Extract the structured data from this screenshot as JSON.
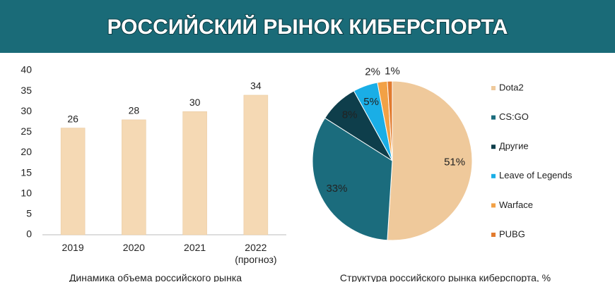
{
  "title": "РОССИЙСКИЙ РЫНОК КИБЕРСПОРТА",
  "chart_data": [
    {
      "type": "bar",
      "caption": "Динамика объема российского рынка",
      "categories": [
        "2019",
        "2020",
        "2021",
        "2022\n(прогноз)"
      ],
      "values": [
        26,
        28,
        30,
        34
      ],
      "color": "#f5d9b4",
      "ylim": [
        0,
        40
      ],
      "yticks": [
        0,
        5,
        10,
        15,
        20,
        25,
        30,
        35,
        40
      ],
      "grid": false
    },
    {
      "type": "pie",
      "caption": "Структура российского рынка киберспорта, %",
      "categories": [
        "Dota2",
        "CS:GO",
        "Другие",
        "Leave of Legends",
        "Warface",
        "PUBG"
      ],
      "values": [
        51,
        33,
        8,
        5,
        2,
        1
      ],
      "value_labels": [
        "51%",
        "33%",
        "8%",
        "5%",
        "2%",
        "1%"
      ],
      "colors": [
        "#efc99b",
        "#1b6c7d",
        "#0e3e4b",
        "#1aaee6",
        "#f2a146",
        "#e27b2f"
      ],
      "legend": "right"
    }
  ]
}
